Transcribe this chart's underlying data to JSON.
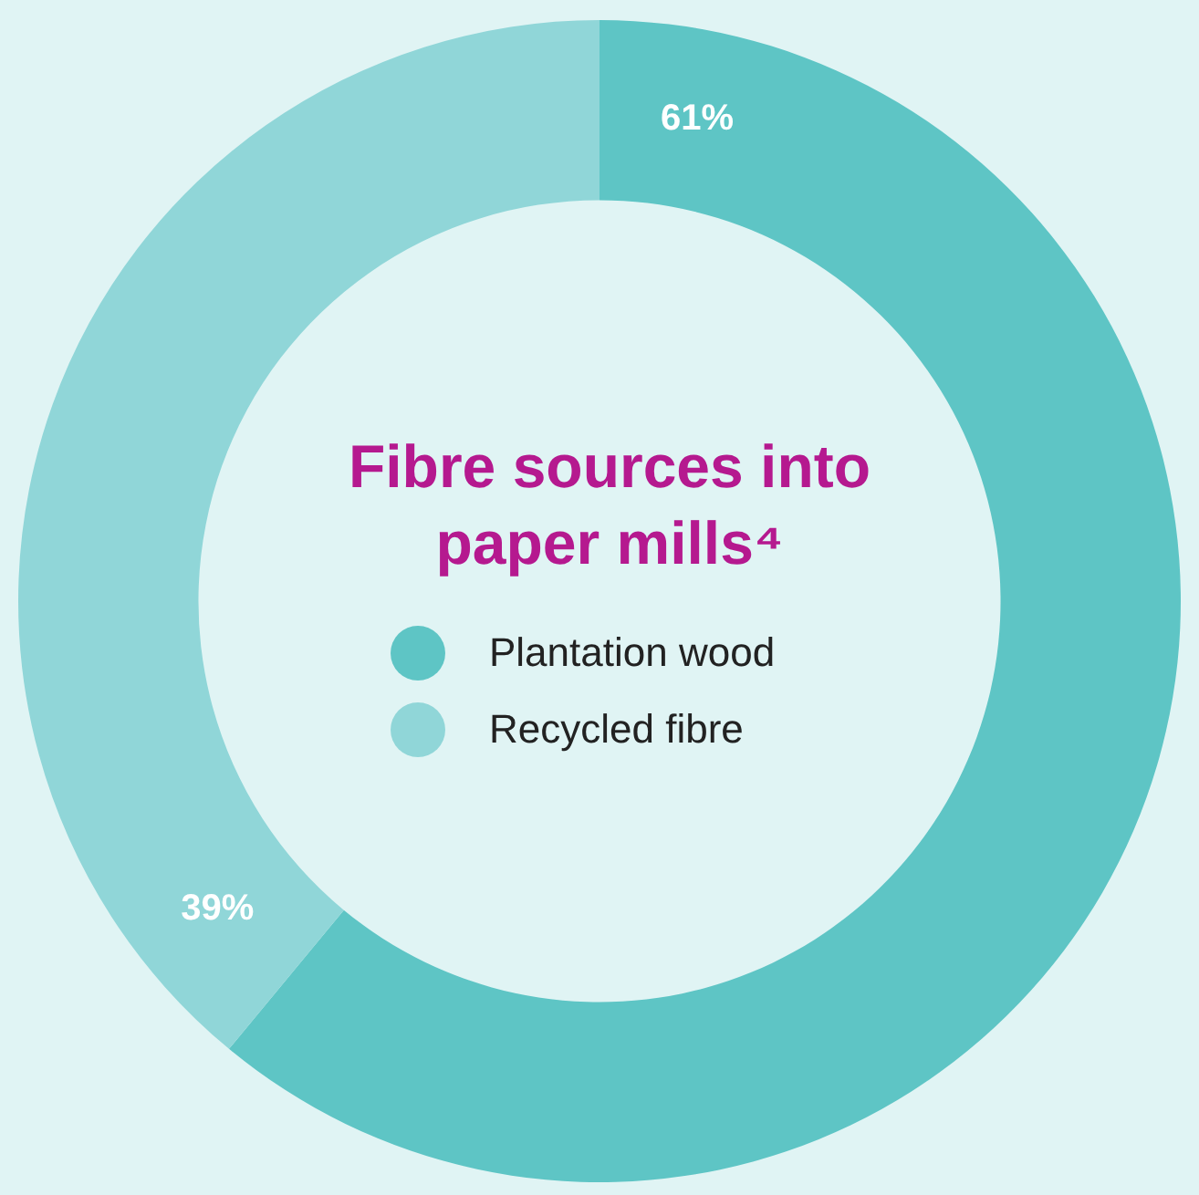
{
  "chart_data": {
    "type": "donut",
    "title": "Fibre sources into paper mills⁴",
    "categories": [
      "Plantation wood",
      "Recycled fibre"
    ],
    "values": [
      61,
      39
    ],
    "colors": [
      "#5ec5c5",
      "#90d6d8"
    ],
    "value_labels": [
      "61%",
      "39%"
    ],
    "legend": "center"
  }
}
